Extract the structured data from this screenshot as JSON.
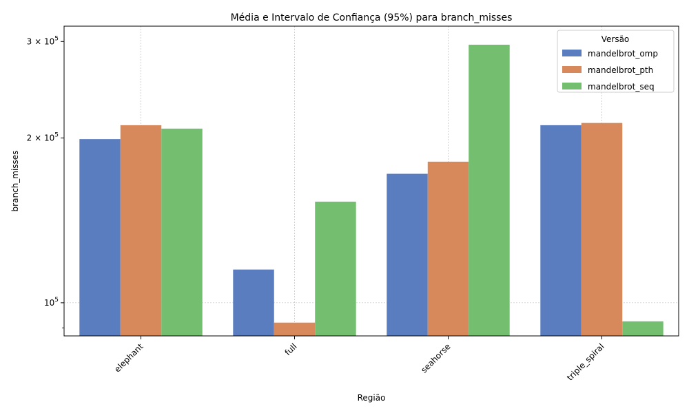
{
  "chart_data": {
    "type": "bar",
    "title": "Média e Intervalo de Confiança (95%) para branch_misses",
    "xlabel": "Região",
    "ylabel": "branch_misses",
    "yscale": "log",
    "ylim": [
      87000,
      320000
    ],
    "grid": true,
    "categories": [
      "elephant",
      "full",
      "seahorse",
      "triple_spiral"
    ],
    "legend": {
      "title": "Versão",
      "position": "top-right"
    },
    "series": [
      {
        "name": "mandelbrot_omp",
        "color": "#5a7dc0",
        "values": [
          199000,
          115000,
          172000,
          211000
        ]
      },
      {
        "name": "mandelbrot_pth",
        "color": "#d8895b",
        "values": [
          211000,
          92000,
          181000,
          213000
        ]
      },
      {
        "name": "mandelbrot_seq",
        "color": "#73bf6f",
        "values": [
          208000,
          153000,
          296000,
          92500
        ]
      }
    ],
    "ytick_labels": [
      {
        "value": 100000,
        "base": "10",
        "exp": "5",
        "coef": ""
      },
      {
        "value": 200000,
        "base": "10",
        "exp": "5",
        "coef": "2 × "
      },
      {
        "value": 300000,
        "base": "10",
        "exp": "5",
        "coef": "3 × "
      }
    ],
    "yminor_ticks": [
      90000
    ]
  }
}
